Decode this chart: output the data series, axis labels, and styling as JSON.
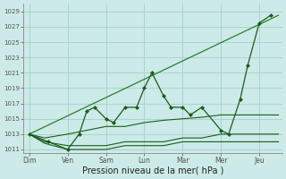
{
  "background_color": "#cceae8",
  "grid_color": "#aad4d0",
  "line_dark": "#1a5c1a",
  "line_mid": "#2e7d2e",
  "xlabel": "Pression niveau de la mer( hPa )",
  "xlabel_fontsize": 7,
  "ylim": [
    1010.5,
    1030.0
  ],
  "yticks": [
    1011,
    1013,
    1015,
    1017,
    1019,
    1021,
    1023,
    1025,
    1027,
    1029
  ],
  "x_labels": [
    "Dim",
    "Ven",
    "Sam",
    "Lun",
    "Mar",
    "Mer",
    "Jeu"
  ],
  "x_positions": [
    0,
    1,
    2,
    3,
    4,
    5,
    6
  ],
  "xlim": [
    -0.15,
    6.6
  ],
  "trend_line": {
    "x": [
      0,
      6.5
    ],
    "y": [
      1013.0,
      1028.5
    ]
  },
  "zigzag_line": {
    "x": [
      0,
      0.5,
      1,
      1.3,
      1.5,
      1.7,
      2.0,
      2.2,
      2.5,
      2.8,
      3.0,
      3.2,
      3.5,
      3.7,
      4.0,
      4.2,
      4.5,
      5.0,
      5.2,
      5.5,
      5.7,
      6.0,
      6.3
    ],
    "y": [
      1013,
      1012,
      1011,
      1013,
      1016,
      1016.5,
      1015,
      1014.5,
      1016.5,
      1016.5,
      1019,
      1021,
      1018,
      1016.5,
      1016.5,
      1015.5,
      1016.5,
      1013.5,
      1013,
      1017.5,
      1022,
      1027.5,
      1028.5
    ]
  },
  "slow_line1": {
    "x": [
      0,
      0.4,
      1,
      1.5,
      2,
      2.5,
      3,
      3.5,
      4,
      4.5,
      5,
      5.5,
      6,
      6.5
    ],
    "y": [
      1013,
      1012.5,
      1013,
      1013.5,
      1014,
      1014,
      1014.5,
      1014.8,
      1015,
      1015.2,
      1015.5,
      1015.5,
      1015.5,
      1015.5
    ]
  },
  "slow_line2": {
    "x": [
      0,
      0.4,
      1,
      1.5,
      2,
      2.5,
      3,
      3.5,
      4,
      4.5,
      5,
      5.5,
      6,
      6.5
    ],
    "y": [
      1013,
      1012,
      1011.5,
      1011.5,
      1011.5,
      1012,
      1012,
      1012,
      1012.5,
      1012.5,
      1013,
      1013,
      1013,
      1013
    ]
  },
  "slow_line3": {
    "x": [
      0,
      0.4,
      1,
      1.5,
      2,
      2.5,
      3,
      3.5,
      4,
      4.5,
      5,
      5.5,
      6,
      6.5
    ],
    "y": [
      1013,
      1011.8,
      1011,
      1011,
      1011,
      1011.5,
      1011.5,
      1011.5,
      1012,
      1012,
      1012,
      1012,
      1012,
      1012
    ]
  }
}
